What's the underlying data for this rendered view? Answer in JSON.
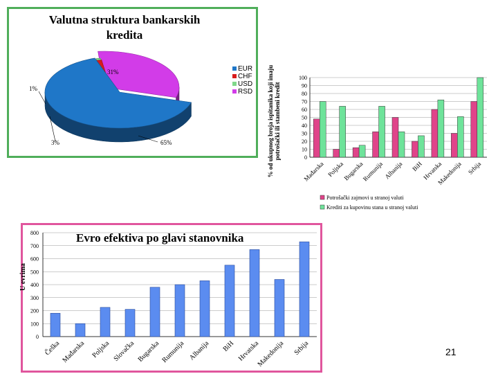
{
  "page_number": "21",
  "colors": {
    "eur": "#1f77c8",
    "chf": "#d81b1b",
    "usd": "#7fd88a",
    "rsd": "#d23ce8",
    "potrosacki": "#e0448a",
    "kreditistan": "#6ee39a",
    "evro": "#5b8cf0"
  },
  "chart_data": [
    {
      "type": "pie",
      "title": "Valutna struktura bankarskih kredita",
      "legend": [
        "EUR",
        "CHF",
        "USD",
        "RSD"
      ],
      "legend_placement": "right",
      "slices": [
        {
          "label": "EUR",
          "value": 65,
          "text": "65%"
        },
        {
          "label": "CHF",
          "value": 3,
          "text": "3%"
        },
        {
          "label": "USD",
          "value": 1,
          "text": "1%"
        },
        {
          "label": "RSD",
          "value": 31,
          "text": "31%"
        }
      ]
    },
    {
      "type": "bar",
      "title": "",
      "ylabel": "% od ukupnog broja ispitanika koji imaju potrošački ili stambeni kredit",
      "ylim": [
        0,
        100
      ],
      "yticks": [
        "0",
        "10",
        "20",
        "30",
        "40",
        "50",
        "60",
        "70",
        "80",
        "90",
        "100"
      ],
      "grid": true,
      "legend_placement": "bottom",
      "categories": [
        "Mađarska",
        "Poljska",
        "Bugarska",
        "Rumunija",
        "Albanija",
        "BiH",
        "Hrvatska",
        "Makedonija",
        "Srbija"
      ],
      "series": [
        {
          "name": "Potrošački zajmovi u stranoj valuti",
          "values": [
            48,
            10,
            12,
            32,
            50,
            20,
            60,
            30,
            70
          ]
        },
        {
          "name": "Krediti za kupovinu stana u stranoj valuti",
          "values": [
            70,
            64,
            15,
            64,
            32,
            27,
            72,
            51,
            100
          ]
        }
      ]
    },
    {
      "type": "bar",
      "title": "Evro efektiva po glavi stanovnika",
      "ylabel": "U evrima",
      "ylim": [
        0,
        800
      ],
      "yticks": [
        "0",
        "100",
        "200",
        "300",
        "400",
        "500",
        "600",
        "700",
        "800"
      ],
      "grid": true,
      "categories": [
        "Češka",
        "Mađarska",
        "Poljska",
        "Slovačka",
        "Bugarska",
        "Rumunija",
        "Albanija",
        "BiH",
        "Hrvatska",
        "Makedonija",
        "Srbija"
      ],
      "values": [
        180,
        100,
        225,
        210,
        380,
        400,
        430,
        550,
        670,
        440,
        730
      ]
    }
  ]
}
